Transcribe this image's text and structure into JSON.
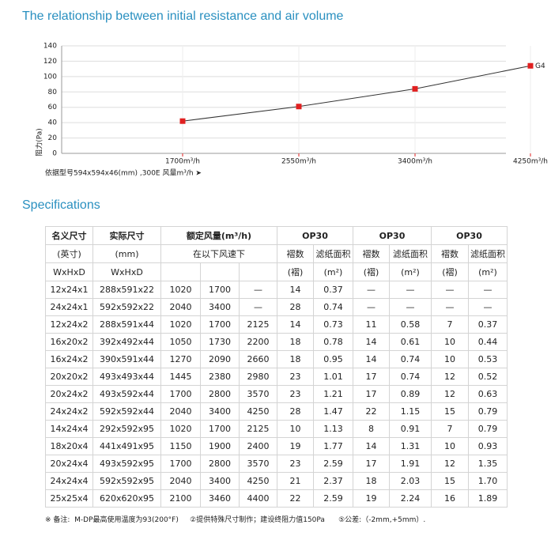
{
  "chart_data": {
    "type": "line",
    "title": "The relationship between initial resistance and air volume",
    "y_label": "阻力(Pa)",
    "x_label": "依据型号594x594x46(mm) ,300E   风量m³/h  ➤",
    "categories": [
      "1700m³/h",
      "2550m³/h",
      "3400m³/h",
      "4250m³/h"
    ],
    "series": [
      {
        "name": "G4",
        "color": "#e02020",
        "values": [
          42,
          61,
          84,
          114
        ]
      }
    ],
    "ylim": [
      0,
      140
    ],
    "yticks": [
      0,
      20,
      40,
      60,
      80,
      100,
      120,
      140
    ],
    "grid": true
  },
  "specs": {
    "title": "Specifications",
    "header": [
      [
        "名义尺寸",
        "实际尺寸",
        "额定风量(m³/h)",
        "OP30",
        "OP30",
        "OP30"
      ],
      [
        "(英寸)",
        "(mm)",
        "在以下风速下",
        "褶数",
        "滤纸面积",
        "褶数",
        "滤纸面积",
        "褶数",
        "滤纸面积"
      ],
      [
        "WxHxD",
        "WxHxD",
        "(褶)",
        "(m²)",
        "(褶)",
        "(m²)",
        "(褶)",
        "(m²)"
      ]
    ],
    "rows": [
      [
        "12x24x1",
        "288x591x22",
        "1020",
        "1700",
        "—",
        "14",
        "0.37",
        "—",
        "—",
        "—",
        "—"
      ],
      [
        "24x24x1",
        "592x592x22",
        "2040",
        "3400",
        "—",
        "28",
        "0.74",
        "—",
        "—",
        "—",
        "—"
      ],
      [
        "12x24x2",
        "288x591x44",
        "1020",
        "1700",
        "2125",
        "14",
        "0.73",
        "11",
        "0.58",
        "7",
        "0.37"
      ],
      [
        "16x20x2",
        "392x492x44",
        "1050",
        "1730",
        "2200",
        "18",
        "0.78",
        "14",
        "0.61",
        "10",
        "0.44"
      ],
      [
        "16x24x2",
        "390x591x44",
        "1270",
        "2090",
        "2660",
        "18",
        "0.95",
        "14",
        "0.74",
        "10",
        "0.53"
      ],
      [
        "20x20x2",
        "493x493x44",
        "1445",
        "2380",
        "2980",
        "23",
        "1.01",
        "17",
        "0.74",
        "12",
        "0.52"
      ],
      [
        "20x24x2",
        "493x592x44",
        "1700",
        "2800",
        "3570",
        "23",
        "1.21",
        "17",
        "0.89",
        "12",
        "0.63"
      ],
      [
        "24x24x2",
        "592x592x44",
        "2040",
        "3400",
        "4250",
        "28",
        "1.47",
        "22",
        "1.15",
        "15",
        "0.79"
      ],
      [
        "14x24x4",
        "292x592x95",
        "1020",
        "1700",
        "2125",
        "10",
        "1.13",
        "8",
        "0.91",
        "7",
        "0.79"
      ],
      [
        "18x20x4",
        "441x491x95",
        "1150",
        "1900",
        "2400",
        "19",
        "1.77",
        "14",
        "1.31",
        "10",
        "0.93"
      ],
      [
        "20x24x4",
        "493x592x95",
        "1700",
        "2800",
        "3570",
        "23",
        "2.59",
        "17",
        "1.91",
        "12",
        "1.35"
      ],
      [
        "24x24x4",
        "592x592x95",
        "2040",
        "3400",
        "4250",
        "21",
        "2.37",
        "18",
        "2.03",
        "15",
        "1.70"
      ],
      [
        "25x25x4",
        "620x620x95",
        "2100",
        "3460",
        "4400",
        "22",
        "2.59",
        "19",
        "2.24",
        "16",
        "1.89"
      ]
    ],
    "footnote": "※ 备注:  M-DP最高使用温度为93(200°F)     ②提供特殊尺寸制作；建设终阻力值150Pa      ⑤公差:（-2mm,+5mm）."
  }
}
